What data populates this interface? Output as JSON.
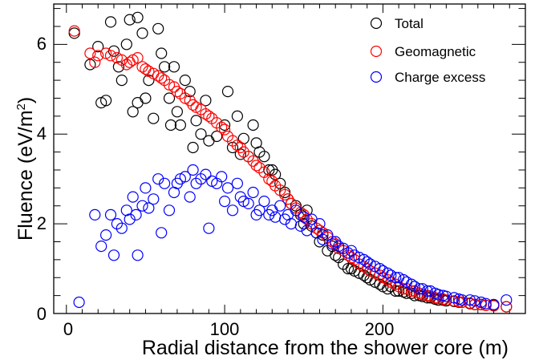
{
  "chart_data": {
    "type": "scatter",
    "xlabel": "Radial distance from the shower core (m)",
    "ylabel_main": "Fluence (eV/m",
    "ylabel_sup": "2",
    "ylabel_tail": ")",
    "xlim": [
      -8,
      290
    ],
    "ylim": [
      0,
      6.9
    ],
    "x_ticks": [
      0,
      100,
      200
    ],
    "y_ticks": [
      0,
      2,
      4,
      6
    ],
    "grid": false,
    "legend_position": "top-right",
    "series": [
      {
        "name": "Total",
        "color": "#000000",
        "points": [
          [
            5,
            6.25
          ],
          [
            15,
            5.55
          ],
          [
            20,
            5.95
          ],
          [
            22,
            4.7
          ],
          [
            25,
            4.75
          ],
          [
            28,
            6.5
          ],
          [
            30,
            5.85
          ],
          [
            33,
            5.5
          ],
          [
            35,
            5.2
          ],
          [
            38,
            6.0
          ],
          [
            40,
            6.55
          ],
          [
            42,
            4.5
          ],
          [
            45,
            6.6
          ],
          [
            45,
            4.7
          ],
          [
            48,
            6.25
          ],
          [
            50,
            4.8
          ],
          [
            52,
            5.2
          ],
          [
            55,
            4.35
          ],
          [
            58,
            6.35
          ],
          [
            60,
            5.8
          ],
          [
            62,
            5.5
          ],
          [
            65,
            4.8
          ],
          [
            66,
            4.2
          ],
          [
            68,
            5.5
          ],
          [
            70,
            4.5
          ],
          [
            72,
            4.2
          ],
          [
            75,
            5.2
          ],
          [
            78,
            4.95
          ],
          [
            80,
            3.7
          ],
          [
            82,
            4.3
          ],
          [
            85,
            4.0
          ],
          [
            88,
            4.75
          ],
          [
            90,
            3.85
          ],
          [
            95,
            3.95
          ],
          [
            100,
            4.2
          ],
          [
            102,
            4.95
          ],
          [
            105,
            3.7
          ],
          [
            108,
            4.4
          ],
          [
            110,
            3.55
          ],
          [
            112,
            3.9
          ],
          [
            115,
            3.5
          ],
          [
            118,
            4.2
          ],
          [
            120,
            3.8
          ],
          [
            122,
            3.6
          ],
          [
            125,
            3.5
          ],
          [
            128,
            3.2
          ],
          [
            130,
            3.2
          ],
          [
            132,
            3.1
          ],
          [
            135,
            2.9
          ],
          [
            138,
            2.7
          ],
          [
            140,
            2.55
          ],
          [
            142,
            2.45
          ],
          [
            145,
            2.4
          ],
          [
            148,
            2.2
          ],
          [
            150,
            2.0
          ],
          [
            152,
            2.3
          ],
          [
            155,
            1.95
          ],
          [
            158,
            1.8
          ],
          [
            160,
            1.6
          ],
          [
            162,
            1.75
          ],
          [
            165,
            1.4
          ],
          [
            168,
            1.5
          ],
          [
            170,
            1.3
          ],
          [
            172,
            1.25
          ],
          [
            175,
            1.1
          ],
          [
            178,
            1.0
          ],
          [
            180,
            1.0
          ],
          [
            182,
            0.95
          ],
          [
            185,
            0.9
          ],
          [
            188,
            0.85
          ],
          [
            190,
            0.8
          ],
          [
            192,
            0.75
          ],
          [
            195,
            0.7
          ],
          [
            198,
            0.65
          ],
          [
            200,
            0.6
          ],
          [
            203,
            0.55
          ],
          [
            205,
            0.6
          ],
          [
            208,
            0.5
          ],
          [
            210,
            0.5
          ],
          [
            213,
            0.48
          ],
          [
            215,
            0.45
          ],
          [
            218,
            0.45
          ],
          [
            220,
            0.4
          ],
          [
            223,
            0.4
          ],
          [
            225,
            0.38
          ],
          [
            228,
            0.35
          ],
          [
            230,
            0.35
          ],
          [
            233,
            0.32
          ],
          [
            235,
            0.3
          ],
          [
            238,
            0.3
          ],
          [
            240,
            0.28
          ],
          [
            245,
            0.27
          ],
          [
            248,
            0.25
          ],
          [
            250,
            0.25
          ],
          [
            255,
            0.22
          ],
          [
            258,
            0.2
          ],
          [
            262,
            0.2
          ],
          [
            265,
            0.18
          ],
          [
            270,
            0.18
          ],
          [
            278,
            0.15
          ]
        ]
      },
      {
        "name": "Geomagnetic",
        "color": "#ff0000",
        "points": [
          [
            5,
            6.3
          ],
          [
            15,
            5.8
          ],
          [
            18,
            5.6
          ],
          [
            20,
            5.75
          ],
          [
            25,
            5.8
          ],
          [
            28,
            5.75
          ],
          [
            32,
            5.7
          ],
          [
            35,
            5.65
          ],
          [
            38,
            5.55
          ],
          [
            40,
            5.6
          ],
          [
            42,
            5.65
          ],
          [
            45,
            5.7
          ],
          [
            48,
            5.5
          ],
          [
            50,
            5.45
          ],
          [
            52,
            5.4
          ],
          [
            55,
            5.35
          ],
          [
            58,
            5.3
          ],
          [
            60,
            5.25
          ],
          [
            62,
            5.2
          ],
          [
            65,
            5.1
          ],
          [
            68,
            5.05
          ],
          [
            70,
            4.95
          ],
          [
            72,
            4.9
          ],
          [
            75,
            4.8
          ],
          [
            78,
            4.75
          ],
          [
            80,
            4.65
          ],
          [
            82,
            4.6
          ],
          [
            85,
            4.55
          ],
          [
            88,
            4.45
          ],
          [
            90,
            4.4
          ],
          [
            92,
            4.35
          ],
          [
            95,
            4.25
          ],
          [
            98,
            4.15
          ],
          [
            100,
            4.1
          ],
          [
            102,
            3.95
          ],
          [
            105,
            3.85
          ],
          [
            108,
            3.75
          ],
          [
            110,
            3.7
          ],
          [
            112,
            3.6
          ],
          [
            115,
            3.5
          ],
          [
            118,
            3.4
          ],
          [
            120,
            3.3
          ],
          [
            122,
            3.25
          ],
          [
            125,
            3.15
          ],
          [
            128,
            3.0
          ],
          [
            130,
            2.95
          ],
          [
            132,
            2.85
          ],
          [
            135,
            2.75
          ],
          [
            138,
            2.65
          ],
          [
            140,
            2.55
          ],
          [
            142,
            2.45
          ],
          [
            145,
            2.35
          ],
          [
            148,
            2.25
          ],
          [
            150,
            2.2
          ],
          [
            152,
            2.1
          ],
          [
            155,
            2.0
          ],
          [
            158,
            1.9
          ],
          [
            160,
            1.85
          ],
          [
            162,
            1.8
          ],
          [
            165,
            1.7
          ],
          [
            168,
            1.6
          ],
          [
            170,
            1.55
          ],
          [
            172,
            1.45
          ],
          [
            175,
            1.4
          ],
          [
            178,
            1.3
          ],
          [
            180,
            1.25
          ],
          [
            182,
            1.2
          ],
          [
            185,
            1.1
          ],
          [
            188,
            1.05
          ],
          [
            190,
            1.0
          ],
          [
            192,
            0.95
          ],
          [
            195,
            0.9
          ],
          [
            198,
            0.85
          ],
          [
            200,
            0.8
          ],
          [
            203,
            0.75
          ],
          [
            205,
            0.7
          ],
          [
            208,
            0.65
          ],
          [
            210,
            0.6
          ],
          [
            213,
            0.55
          ],
          [
            215,
            0.55
          ],
          [
            218,
            0.5
          ],
          [
            220,
            0.5
          ],
          [
            223,
            0.45
          ],
          [
            225,
            0.42
          ],
          [
            228,
            0.4
          ],
          [
            230,
            0.38
          ],
          [
            233,
            0.35
          ],
          [
            235,
            0.33
          ],
          [
            238,
            0.32
          ],
          [
            240,
            0.3
          ],
          [
            245,
            0.28
          ],
          [
            248,
            0.26
          ],
          [
            250,
            0.25
          ],
          [
            255,
            0.23
          ],
          [
            258,
            0.2
          ],
          [
            262,
            0.2
          ],
          [
            265,
            0.18
          ],
          [
            270,
            0.17
          ],
          [
            278,
            0.15
          ]
        ]
      },
      {
        "name": "Charge excess",
        "color": "#0000ff",
        "points": [
          [
            8,
            0.25
          ],
          [
            18,
            2.2
          ],
          [
            22,
            1.5
          ],
          [
            25,
            1.75
          ],
          [
            28,
            2.2
          ],
          [
            30,
            1.3
          ],
          [
            32,
            2.0
          ],
          [
            35,
            1.9
          ],
          [
            38,
            2.3
          ],
          [
            40,
            2.1
          ],
          [
            42,
            2.6
          ],
          [
            44,
            2.2
          ],
          [
            45,
            1.3
          ],
          [
            48,
            2.4
          ],
          [
            50,
            2.8
          ],
          [
            52,
            2.35
          ],
          [
            55,
            2.55
          ],
          [
            58,
            3.0
          ],
          [
            60,
            1.8
          ],
          [
            62,
            2.9
          ],
          [
            65,
            2.3
          ],
          [
            68,
            2.7
          ],
          [
            70,
            2.9
          ],
          [
            72,
            3.0
          ],
          [
            75,
            3.05
          ],
          [
            78,
            2.6
          ],
          [
            80,
            3.2
          ],
          [
            82,
            2.9
          ],
          [
            85,
            3.0
          ],
          [
            88,
            3.1
          ],
          [
            90,
            1.9
          ],
          [
            92,
            2.95
          ],
          [
            95,
            2.9
          ],
          [
            98,
            3.05
          ],
          [
            100,
            2.5
          ],
          [
            102,
            2.8
          ],
          [
            105,
            2.3
          ],
          [
            108,
            2.9
          ],
          [
            110,
            2.6
          ],
          [
            112,
            2.5
          ],
          [
            115,
            2.45
          ],
          [
            118,
            2.7
          ],
          [
            120,
            2.2
          ],
          [
            122,
            2.3
          ],
          [
            125,
            2.5
          ],
          [
            128,
            2.2
          ],
          [
            130,
            2.3
          ],
          [
            132,
            2.15
          ],
          [
            135,
            2.4
          ],
          [
            138,
            2.1
          ],
          [
            140,
            2.2
          ],
          [
            142,
            2.0
          ],
          [
            145,
            2.3
          ],
          [
            148,
            1.95
          ],
          [
            150,
            2.15
          ],
          [
            152,
            1.85
          ],
          [
            155,
            2.1
          ],
          [
            158,
            1.8
          ],
          [
            160,
            2.0
          ],
          [
            162,
            1.65
          ],
          [
            165,
            1.75
          ],
          [
            168,
            1.55
          ],
          [
            170,
            1.6
          ],
          [
            172,
            1.5
          ],
          [
            175,
            1.45
          ],
          [
            178,
            1.35
          ],
          [
            180,
            1.4
          ],
          [
            182,
            1.3
          ],
          [
            185,
            1.25
          ],
          [
            188,
            1.2
          ],
          [
            190,
            1.15
          ],
          [
            192,
            1.1
          ],
          [
            195,
            1.05
          ],
          [
            198,
            1.0
          ],
          [
            200,
            0.95
          ],
          [
            203,
            0.9
          ],
          [
            205,
            0.85
          ],
          [
            208,
            0.8
          ],
          [
            210,
            0.8
          ],
          [
            213,
            0.75
          ],
          [
            215,
            0.7
          ],
          [
            218,
            0.65
          ],
          [
            220,
            0.6
          ],
          [
            223,
            0.55
          ],
          [
            225,
            0.55
          ],
          [
            228,
            0.5
          ],
          [
            230,
            0.5
          ],
          [
            233,
            0.45
          ],
          [
            235,
            0.42
          ],
          [
            238,
            0.4
          ],
          [
            240,
            0.38
          ],
          [
            245,
            0.35
          ],
          [
            248,
            0.32
          ],
          [
            250,
            0.3
          ],
          [
            255,
            0.3
          ],
          [
            258,
            0.28
          ],
          [
            262,
            0.25
          ],
          [
            265,
            0.22
          ],
          [
            270,
            0.2
          ],
          [
            278,
            0.3
          ]
        ]
      }
    ]
  }
}
